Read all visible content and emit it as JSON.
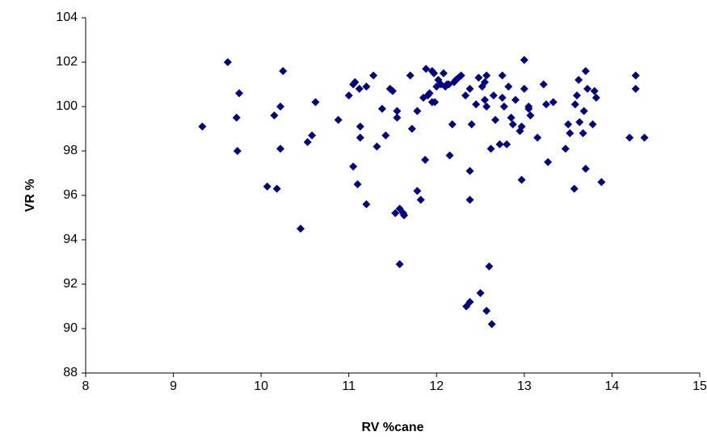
{
  "chart_data": {
    "type": "scatter",
    "x_label": "RV %cane",
    "y_label": "VR %",
    "color": "#000080",
    "xlim": [
      8,
      15
    ],
    "xticks": [
      8,
      9,
      10,
      11,
      12,
      13,
      14,
      15
    ],
    "ylim": [
      88,
      104
    ],
    "yticks": [
      88,
      90,
      92,
      94,
      96,
      98,
      100,
      102,
      104
    ],
    "x": [
      9.33,
      9.62,
      9.72,
      9.75,
      9.73,
      10.07,
      10.15,
      10.18,
      10.22,
      10.22,
      10.25,
      10.45,
      10.53,
      10.58,
      10.62,
      10.88,
      11.0,
      11.05,
      11.05,
      11.07,
      11.1,
      11.12,
      11.13,
      11.13,
      11.2,
      11.2,
      11.28,
      11.32,
      11.38,
      11.42,
      11.47,
      11.5,
      11.53,
      11.55,
      11.55,
      11.58,
      11.58,
      11.62,
      11.63,
      11.7,
      11.72,
      11.78,
      11.78,
      11.82,
      11.85,
      11.87,
      11.88,
      11.9,
      11.92,
      11.95,
      11.95,
      11.97,
      11.98,
      12.0,
      12.02,
      12.05,
      12.08,
      12.1,
      12.12,
      12.14,
      12.15,
      12.18,
      12.2,
      12.22,
      12.25,
      12.28,
      12.33,
      12.34,
      12.38,
      12.38,
      12.38,
      12.38,
      12.4,
      12.45,
      12.48,
      12.5,
      12.52,
      12.55,
      12.55,
      12.57,
      12.57,
      12.57,
      12.6,
      12.62,
      12.63,
      12.65,
      12.67,
      12.72,
      12.75,
      12.75,
      12.77,
      12.8,
      12.82,
      12.85,
      12.87,
      12.9,
      12.95,
      12.97,
      12.97,
      13.0,
      13.0,
      13.05,
      13.05,
      13.07,
      13.15,
      13.22,
      13.25,
      13.27,
      13.33,
      13.47,
      13.5,
      13.52,
      13.57,
      13.58,
      13.6,
      13.62,
      13.63,
      13.67,
      13.68,
      13.7,
      13.7,
      13.72,
      13.78,
      13.8,
      13.82,
      13.88,
      14.2,
      14.27,
      14.27,
      14.37
    ],
    "values": [
      99.1,
      102.0,
      99.5,
      100.6,
      98.0,
      96.4,
      99.6,
      96.3,
      100.0,
      98.1,
      101.6,
      94.5,
      98.4,
      98.7,
      100.2,
      99.4,
      100.5,
      97.3,
      101.0,
      101.1,
      96.5,
      100.8,
      99.1,
      98.6,
      100.9,
      95.6,
      101.4,
      98.2,
      99.9,
      98.7,
      100.8,
      100.7,
      95.2,
      99.8,
      99.5,
      95.4,
      92.9,
      95.2,
      95.1,
      101.4,
      99.0,
      96.2,
      99.8,
      95.8,
      100.4,
      97.6,
      101.7,
      100.5,
      100.6,
      101.6,
      100.2,
      101.5,
      100.2,
      100.9,
      101.2,
      101.0,
      101.5,
      100.9,
      101.0,
      101.0,
      97.8,
      99.2,
      101.1,
      101.2,
      101.3,
      101.4,
      100.5,
      91.0,
      100.8,
      91.2,
      97.1,
      95.8,
      99.2,
      100.1,
      101.3,
      91.6,
      100.9,
      100.3,
      101.1,
      100.0,
      101.4,
      90.8,
      92.8,
      98.1,
      90.2,
      100.5,
      99.4,
      98.3,
      101.4,
      100.4,
      100.0,
      98.3,
      100.9,
      99.5,
      99.2,
      100.3,
      98.9,
      99.1,
      96.7,
      102.1,
      100.8,
      100.0,
      99.9,
      99.6,
      98.6,
      101.0,
      100.1,
      97.5,
      100.2,
      98.1,
      99.2,
      98.8,
      96.3,
      100.1,
      100.5,
      101.2,
      99.3,
      98.8,
      99.8,
      101.6,
      97.2,
      100.8,
      99.2,
      100.7,
      100.4,
      96.6,
      98.6,
      100.8,
      101.4,
      98.6
    ]
  }
}
